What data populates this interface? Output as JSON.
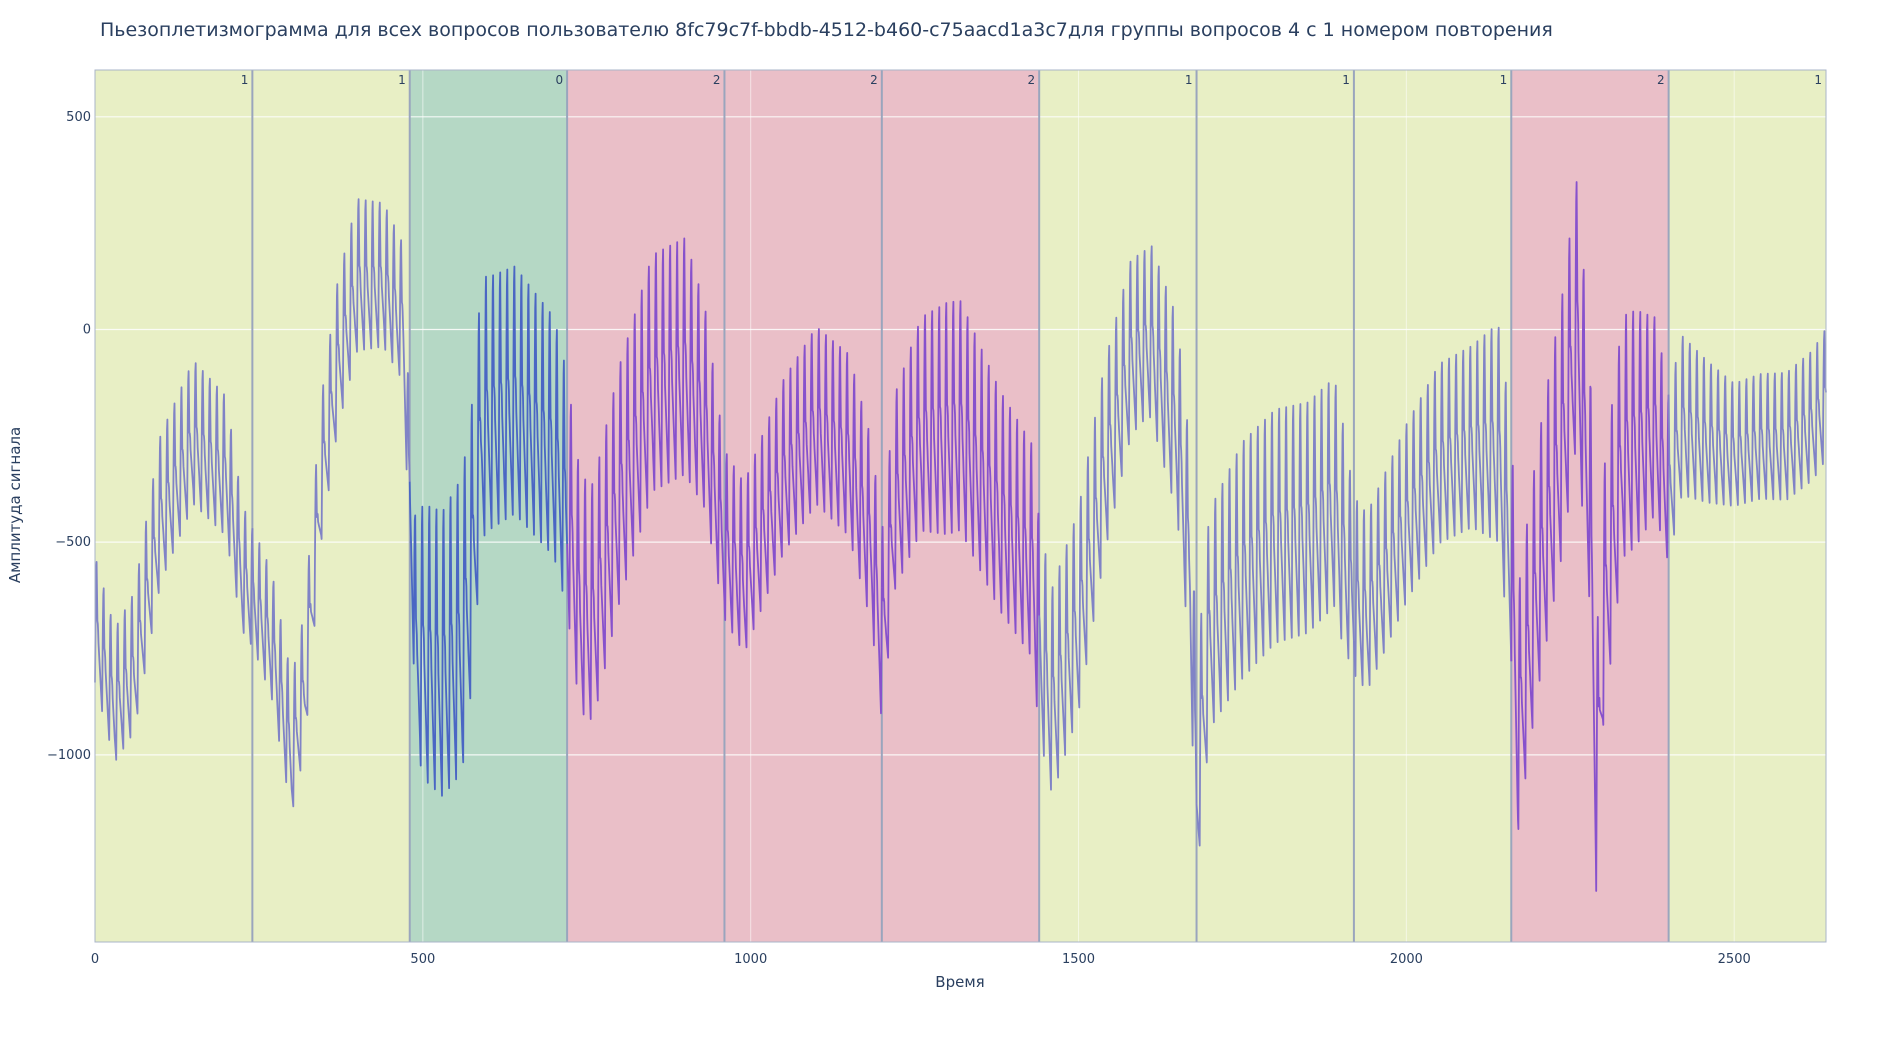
{
  "chart_data": {
    "type": "line",
    "title": "Пьезоплетизмограмма для всех вопросов пользователю 8fc79c7f-bbdb-4512-b460-c75aacd1a3c7для группы вопросов 4 с 1 номером повторения",
    "xlabel": "Время",
    "ylabel": "Амплитуда сигнала",
    "xlim": [
      0,
      2640
    ],
    "ylim": [
      -1440,
      610
    ],
    "x_ticks": [
      0,
      500,
      1000,
      1500,
      2000,
      2500
    ],
    "y_ticks": [
      500,
      0,
      -500,
      -1000
    ],
    "y_tick_labels": [
      "500",
      "0",
      "−500",
      "−1000"
    ],
    "grid": true,
    "segments": [
      {
        "start": 0,
        "end": 240,
        "label": "1"
      },
      {
        "start": 240,
        "end": 480,
        "label": "1"
      },
      {
        "start": 480,
        "end": 720,
        "label": "0"
      },
      {
        "start": 720,
        "end": 960,
        "label": "2"
      },
      {
        "start": 960,
        "end": 1200,
        "label": "2"
      },
      {
        "start": 1200,
        "end": 1440,
        "label": "2"
      },
      {
        "start": 1440,
        "end": 1680,
        "label": "1"
      },
      {
        "start": 1680,
        "end": 1920,
        "label": "1"
      },
      {
        "start": 1920,
        "end": 2160,
        "label": "1"
      },
      {
        "start": 2160,
        "end": 2400,
        "label": "2"
      },
      {
        "start": 2400,
        "end": 2640,
        "label": "1"
      }
    ],
    "segment_colors": {
      "0": "#b5d8c5",
      "1": "#e8efc5",
      "2": "#eabfc8"
    },
    "line_colors": {
      "0": "#4a66c4",
      "1": "#8083c6",
      "2": "#8751cc"
    },
    "series": [
      {
        "beat_period": 10.8,
        "baseline_keypoints": [
          [
            0,
            -680
          ],
          [
            30,
            -860
          ],
          [
            60,
            -780
          ],
          [
            100,
            -420
          ],
          [
            150,
            -240
          ],
          [
            200,
            -320
          ],
          [
            225,
            -560
          ],
          [
            245,
            -620
          ],
          [
            270,
            -720
          ],
          [
            300,
            -980
          ],
          [
            320,
            -820
          ],
          [
            345,
            -330
          ],
          [
            370,
            -60
          ],
          [
            400,
            130
          ],
          [
            440,
            130
          ],
          [
            470,
            40
          ],
          [
            480,
            -360
          ],
          [
            490,
            -720
          ],
          [
            530,
            -760
          ],
          [
            560,
            -690
          ],
          [
            575,
            -500
          ],
          [
            590,
            -180
          ],
          [
            640,
            -140
          ],
          [
            700,
            -250
          ],
          [
            720,
            -380
          ],
          [
            740,
            -620
          ],
          [
            760,
            -640
          ],
          [
            800,
            -360
          ],
          [
            850,
            -100
          ],
          [
            900,
            -60
          ],
          [
            930,
            -180
          ],
          [
            960,
            -480
          ],
          [
            990,
            -560
          ],
          [
            1050,
            -320
          ],
          [
            1100,
            -200
          ],
          [
            1150,
            -270
          ],
          [
            1185,
            -480
          ],
          [
            1200,
            -700
          ],
          [
            1220,
            -380
          ],
          [
            1260,
            -220
          ],
          [
            1320,
            -200
          ],
          [
            1380,
            -400
          ],
          [
            1430,
            -520
          ],
          [
            1440,
            -700
          ],
          [
            1460,
            -850
          ],
          [
            1500,
            -660
          ],
          [
            1540,
            -300
          ],
          [
            1580,
            -40
          ],
          [
            1610,
            0
          ],
          [
            1650,
            -200
          ],
          [
            1670,
            -520
          ],
          [
            1680,
            -1050
          ],
          [
            1700,
            -680
          ],
          [
            1750,
            -540
          ],
          [
            1800,
            -460
          ],
          [
            1850,
            -440
          ],
          [
            1890,
            -380
          ],
          [
            1920,
            -600
          ],
          [
            1940,
            -640
          ],
          [
            2000,
            -430
          ],
          [
            2050,
            -290
          ],
          [
            2100,
            -250
          ],
          [
            2140,
            -240
          ],
          [
            2160,
            -500
          ],
          [
            2170,
            -900
          ],
          [
            2200,
            -560
          ],
          [
            2240,
            -200
          ],
          [
            2260,
            50
          ],
          [
            2280,
            -350
          ],
          [
            2290,
            -1050
          ],
          [
            2300,
            -640
          ],
          [
            2330,
            -250
          ],
          [
            2380,
            -200
          ],
          [
            2400,
            -350
          ],
          [
            2420,
            -200
          ],
          [
            2460,
            -240
          ],
          [
            2500,
            -270
          ],
          [
            2540,
            -250
          ],
          [
            2580,
            -250
          ],
          [
            2620,
            -200
          ],
          [
            2640,
            -150
          ]
        ],
        "amplitude_keypoints": [
          [
            0,
            300
          ],
          [
            100,
            350
          ],
          [
            200,
            330
          ],
          [
            240,
            280
          ],
          [
            300,
            320
          ],
          [
            400,
            360
          ],
          [
            480,
            320
          ],
          [
            500,
            650
          ],
          [
            560,
            700
          ],
          [
            600,
            600
          ],
          [
            720,
            560
          ],
          [
            800,
            560
          ],
          [
            900,
            560
          ],
          [
            960,
            400
          ],
          [
            1050,
            410
          ],
          [
            1100,
            420
          ],
          [
            1200,
            440
          ],
          [
            1300,
            550
          ],
          [
            1440,
            500
          ],
          [
            1500,
            480
          ],
          [
            1600,
            400
          ],
          [
            1680,
            500
          ],
          [
            1750,
            560
          ],
          [
            1900,
            540
          ],
          [
            1920,
            420
          ],
          [
            2000,
            420
          ],
          [
            2100,
            430
          ],
          [
            2160,
            560
          ],
          [
            2250,
            620
          ],
          [
            2350,
            560
          ],
          [
            2400,
            400
          ],
          [
            2500,
            290
          ],
          [
            2640,
            310
          ]
        ]
      }
    ]
  }
}
